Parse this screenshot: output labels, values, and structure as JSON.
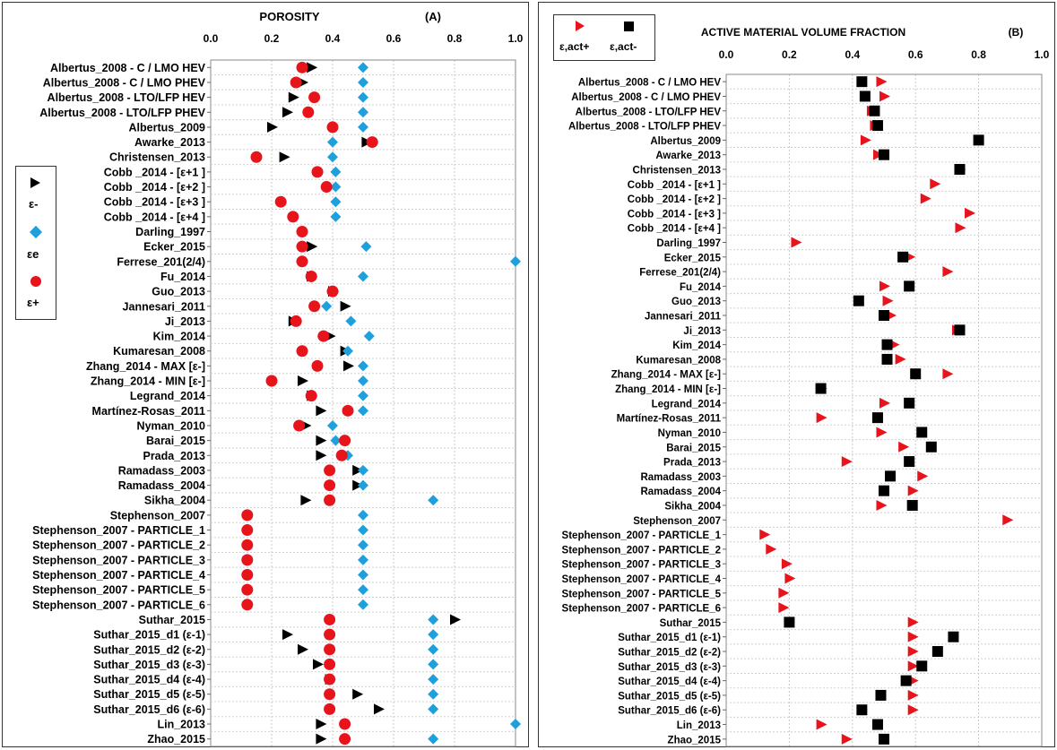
{
  "chart_data": [
    {
      "type": "scatter",
      "title": "POROSITY",
      "panel_tag": "(A)",
      "xlim": [
        0,
        1
      ],
      "xticks": [
        "0.0",
        "0.2",
        "0.4",
        "0.6",
        "0.8",
        "1.0"
      ],
      "grid": true,
      "legend_position": "left",
      "categories": [
        "Albertus_2008 - C / LMO HEV",
        "Albertus_2008 - C / LMO PHEV",
        "Albertus_2008 - LTO/LFP HEV",
        "Albertus_2008 - LTO/LFP PHEV",
        "Albertus_2009",
        "Awarke_2013",
        "Christensen_2013",
        "Cobb _2014 - [ε+1 ]",
        "Cobb _2014 - [ε+2 ]",
        "Cobb _2014 - [ε+3 ]",
        "Cobb _2014 - [ε+4 ]",
        "Darling_1997",
        "Ecker_2015",
        "Ferrese_201(2/4)",
        "Fu_2014",
        "Guo_2013",
        "Jannesari_2011",
        "Ji_2013",
        "Kim_2014",
        "Kumaresan_2008",
        "Zhang_2014 - MAX [ε-]",
        "Zhang_2014 - MIN [ε-]",
        "Legrand_2014",
        "Martínez-Rosas_2011",
        "Nyman_2010",
        "Barai_2015",
        "Prada_2013",
        "Ramadass_2003",
        "Ramadass_2004",
        "Sikha_2004",
        "Stephenson_2007",
        "Stephenson_2007 - PARTICLE_1",
        "Stephenson_2007 - PARTICLE_2",
        "Stephenson_2007 - PARTICLE_3",
        "Stephenson_2007 - PARTICLE_4",
        "Stephenson_2007 - PARTICLE_5",
        "Stephenson_2007 - PARTICLE_6",
        "Suthar_2015",
        "Suthar_2015_d1 (ε-1)",
        "Suthar_2015_d2 (ε-2)",
        "Suthar_2015_d3 (ε-3)",
        "Suthar_2015_d4 (ε-4)",
        "Suthar_2015_d5 (ε-5)",
        "Suthar_2015_d6 (ε-6)",
        "Lin_2013",
        "Zhao_2015"
      ],
      "series": [
        {
          "name": "ε-",
          "marker": "triangle",
          "color": "#000000",
          "values": [
            0.33,
            0.3,
            0.27,
            0.25,
            0.2,
            0.51,
            0.24,
            null,
            null,
            null,
            null,
            null,
            0.33,
            null,
            0.33,
            0.4,
            0.44,
            0.27,
            0.39,
            0.44,
            0.45,
            0.3,
            0.33,
            0.36,
            0.31,
            0.36,
            0.36,
            0.48,
            0.48,
            0.31,
            null,
            null,
            null,
            null,
            null,
            null,
            null,
            0.8,
            0.25,
            0.3,
            0.35,
            0.39,
            0.48,
            0.55,
            0.36,
            0.36
          ]
        },
        {
          "name": "εe",
          "marker": "diamond",
          "color": "#1ea0dc",
          "values": [
            0.5,
            0.5,
            0.5,
            0.5,
            0.5,
            0.4,
            0.4,
            0.41,
            0.41,
            0.41,
            0.41,
            null,
            0.51,
            1.0,
            0.5,
            0.4,
            0.38,
            0.46,
            0.52,
            0.45,
            0.5,
            0.5,
            0.5,
            0.5,
            0.4,
            0.41,
            0.45,
            0.5,
            0.5,
            0.73,
            0.5,
            0.5,
            0.5,
            0.5,
            0.5,
            0.5,
            0.5,
            0.73,
            0.73,
            0.73,
            0.73,
            0.73,
            0.73,
            0.73,
            1.0,
            0.73
          ]
        },
        {
          "name": "ε+",
          "marker": "circle",
          "color": "#e8141c",
          "values": [
            0.3,
            0.28,
            0.34,
            0.32,
            0.4,
            0.53,
            0.15,
            0.35,
            0.38,
            0.23,
            0.27,
            0.3,
            0.3,
            0.3,
            0.33,
            0.4,
            0.34,
            0.28,
            0.37,
            0.3,
            0.35,
            0.2,
            0.33,
            0.45,
            0.29,
            0.44,
            0.43,
            0.39,
            0.39,
            0.39,
            0.12,
            0.12,
            0.12,
            0.12,
            0.12,
            0.12,
            0.12,
            0.39,
            0.39,
            0.39,
            0.39,
            0.39,
            0.39,
            0.39,
            0.44,
            0.44
          ]
        }
      ]
    },
    {
      "type": "scatter",
      "title": "ACTIVE MATERIAL VOLUME FRACTION",
      "panel_tag": "(B)",
      "xlim": [
        0,
        1
      ],
      "xticks": [
        "0.0",
        "0.2",
        "0.4",
        "0.6",
        "0.8",
        "1.0"
      ],
      "grid": true,
      "legend_position": "top-left",
      "categories": [
        "Albertus_2008 - C / LMO HEV",
        "Albertus_2008 - C / LMO PHEV",
        "Albertus_2008 - LTO/LFP HEV",
        "Albertus_2008 - LTO/LFP PHEV",
        "Albertus_2009",
        "Awarke_2013",
        "Christensen_2013",
        "Cobb _2014 - [ε+1 ]",
        "Cobb _2014 - [ε+2 ]",
        "Cobb _2014 - [ε+3 ]",
        "Cobb _2014 - [ε+4 ]",
        "Darling_1997",
        "Ecker_2015",
        "Ferrese_201(2/4)",
        "Fu_2014",
        "Guo_2013",
        "Jannesari_2011",
        "Ji_2013",
        "Kim_2014",
        "Kumaresan_2008",
        "Zhang_2014 - MAX [ε-]",
        "Zhang_2014 - MIN [ε-]",
        "Legrand_2014",
        "Martínez-Rosas_2011",
        "Nyman_2010",
        "Barai_2015",
        "Prada_2013",
        "Ramadass_2003",
        "Ramadass_2004",
        "Sikha_2004",
        "Stephenson_2007",
        "Stephenson_2007 - PARTICLE_1",
        "Stephenson_2007 - PARTICLE_2",
        "Stephenson_2007 - PARTICLE_3",
        "Stephenson_2007 - PARTICLE_4",
        "Stephenson_2007 - PARTICLE_5",
        "Stephenson_2007 - PARTICLE_6",
        "Suthar_2015",
        "Suthar_2015_d1 (ε-1)",
        "Suthar_2015_d2 (ε-2)",
        "Suthar_2015_d3 (ε-3)",
        "Suthar_2015_d4 (ε-4)",
        "Suthar_2015_d5 (ε-5)",
        "Suthar_2015_d6 (ε-6)",
        "Lin_2013",
        "Zhao_2015"
      ],
      "series": [
        {
          "name": "ε,act+",
          "marker": "triangle",
          "color": "#e8141c",
          "values": [
            0.49,
            0.5,
            0.46,
            0.47,
            0.44,
            0.48,
            0.74,
            0.66,
            0.63,
            0.77,
            0.74,
            0.22,
            0.58,
            0.7,
            0.5,
            0.51,
            0.52,
            0.73,
            0.53,
            0.55,
            0.7,
            0.3,
            0.5,
            0.3,
            0.49,
            0.56,
            0.38,
            0.62,
            0.59,
            0.49,
            0.89,
            0.12,
            0.14,
            0.19,
            0.2,
            0.18,
            0.18,
            0.59,
            0.59,
            0.59,
            0.59,
            0.59,
            0.59,
            0.59,
            0.3,
            0.38
          ]
        },
        {
          "name": "ε,act-",
          "marker": "square",
          "color": "#000000",
          "values": [
            0.43,
            0.44,
            0.47,
            0.48,
            0.8,
            0.5,
            0.74,
            null,
            null,
            null,
            null,
            null,
            0.56,
            null,
            0.58,
            0.42,
            0.5,
            0.74,
            0.51,
            0.51,
            0.6,
            0.3,
            0.58,
            0.48,
            0.62,
            0.65,
            0.58,
            0.52,
            0.5,
            0.59,
            null,
            null,
            null,
            null,
            null,
            null,
            null,
            0.2,
            0.72,
            0.67,
            0.62,
            0.57,
            0.49,
            0.43,
            0.48,
            0.5
          ]
        }
      ]
    }
  ]
}
